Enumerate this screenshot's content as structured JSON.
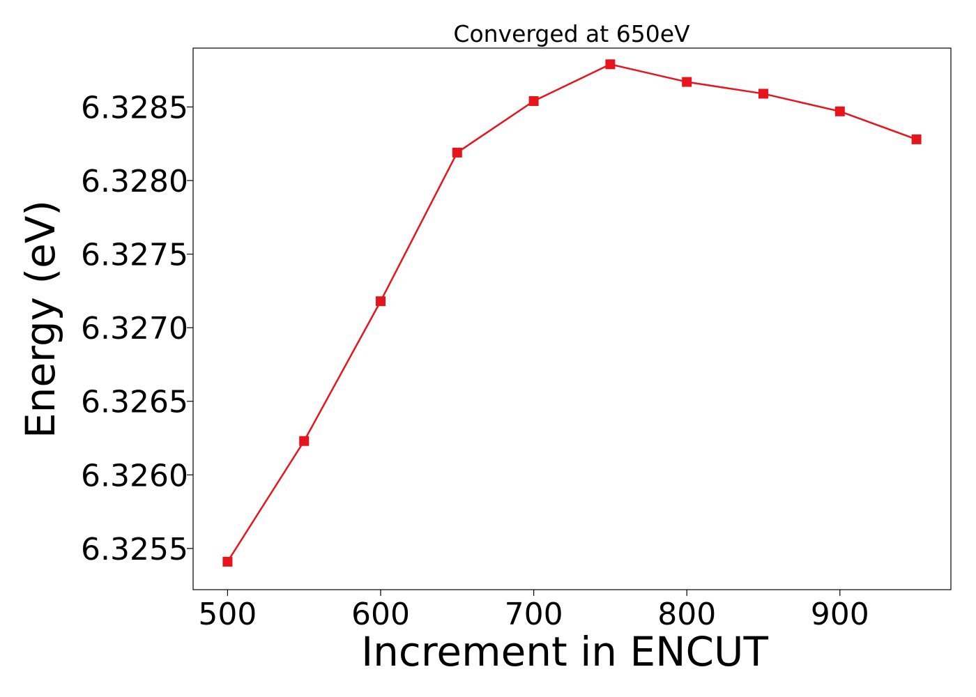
{
  "chart_data": {
    "type": "line",
    "title": "Converged at 650eV",
    "xlabel": "Increment in ENCUT",
    "ylabel": "Energy (eV)",
    "x": [
      500,
      550,
      600,
      650,
      700,
      750,
      800,
      850,
      900,
      950
    ],
    "series": [
      {
        "values": [
          6.32541,
          6.32623,
          6.32718,
          6.32819,
          6.32854,
          6.32879,
          6.32867,
          6.32859,
          6.32847,
          6.32828
        ],
        "color": "#e8141c",
        "marker": "square"
      }
    ],
    "xticks": [
      500,
      600,
      700,
      800,
      900
    ],
    "xtick_labels": [
      "500",
      "600",
      "700",
      "800",
      "900"
    ],
    "yticks": [
      6.3255,
      6.326,
      6.3265,
      6.327,
      6.3275,
      6.328,
      6.3285
    ],
    "ytick_labels": [
      "6.3255",
      "6.3260",
      "6.3265",
      "6.3270",
      "6.3275",
      "6.3280",
      "6.3285"
    ],
    "xlim": [
      477.5,
      972.5
    ],
    "ylim": [
      6.32522,
      6.3289
    ],
    "grid": false,
    "legend": false
  }
}
